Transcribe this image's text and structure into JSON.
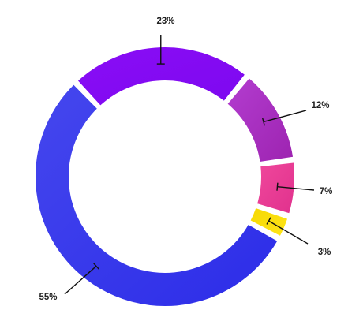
{
  "chart_data": {
    "type": "pie",
    "variant": "donut",
    "slices": [
      {
        "label": "23%",
        "value": 23,
        "color": "#8a0df5",
        "color2": "#7d08f0"
      },
      {
        "label": "12%",
        "value": 12,
        "color": "#b33dd0",
        "color2": "#9d23b0"
      },
      {
        "label": "7%",
        "value": 7,
        "color": "#f0489c",
        "color2": "#e0318d"
      },
      {
        "label": "3%",
        "value": 3,
        "color": "#f5d800",
        "color2": "#ffe51a"
      },
      {
        "label": "55%",
        "value": 55,
        "color": "#4547ee",
        "color2": "#2c2ce8"
      }
    ],
    "legend": "none",
    "labels": "outside with leader lines"
  }
}
